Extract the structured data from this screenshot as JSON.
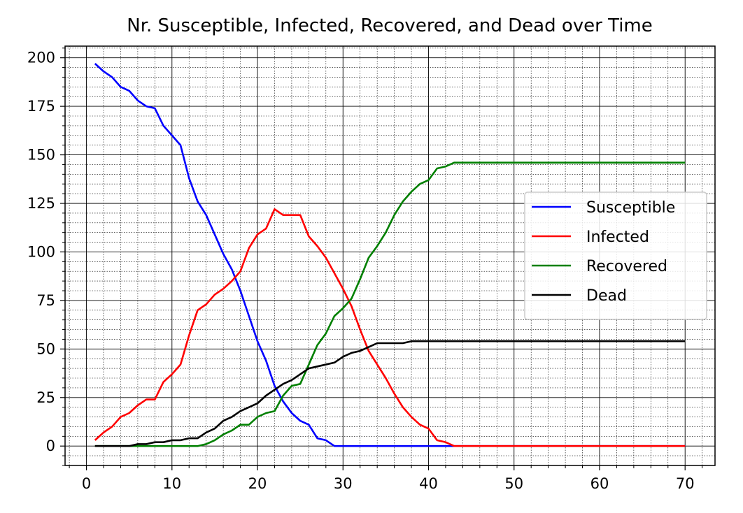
{
  "chart_data": {
    "type": "line",
    "title": "Nr. Susceptible, Infected, Recovered, and Dead over Time",
    "xlabel": "",
    "ylabel": "",
    "xlim": [
      -2.5,
      73.5
    ],
    "ylim": [
      -10,
      206
    ],
    "x_ticks": [
      0,
      10,
      20,
      30,
      40,
      50,
      60,
      70
    ],
    "x_tick_labels": [
      "0",
      "10",
      "20",
      "30",
      "40",
      "50",
      "60",
      "70"
    ],
    "y_ticks": [
      0,
      25,
      50,
      75,
      100,
      125,
      150,
      175,
      200
    ],
    "y_tick_labels": [
      "0",
      "25",
      "50",
      "75",
      "100",
      "125",
      "150",
      "175",
      "200"
    ],
    "grid": true,
    "minor_grid": true,
    "legend_position": "center-right",
    "x": [
      1,
      2,
      3,
      4,
      5,
      6,
      7,
      8,
      9,
      10,
      11,
      12,
      13,
      14,
      15,
      16,
      17,
      18,
      19,
      20,
      21,
      22,
      23,
      24,
      25,
      26,
      27,
      28,
      29,
      30,
      31,
      32,
      33,
      34,
      35,
      36,
      37,
      38,
      39,
      40,
      41,
      42,
      43,
      44,
      45,
      46,
      47,
      48,
      49,
      50,
      51,
      52,
      53,
      54,
      55,
      56,
      57,
      58,
      59,
      60,
      61,
      62,
      63,
      64,
      65,
      66,
      67,
      68,
      69,
      70
    ],
    "series": [
      {
        "name": "Susceptible",
        "color": "#0000ff",
        "values": [
          197,
          193,
          190,
          185,
          183,
          178,
          175,
          174,
          165,
          160,
          155,
          138,
          126,
          119,
          109,
          99,
          91,
          80,
          67,
          54,
          44,
          31,
          23,
          17,
          13,
          11,
          4,
          3,
          0,
          0,
          0,
          0,
          0,
          0,
          0,
          0,
          0,
          0,
          0,
          0,
          0,
          0,
          0,
          0,
          0,
          0,
          0,
          0,
          0,
          0,
          0,
          0,
          0,
          0,
          0,
          0,
          0,
          0,
          0,
          0,
          0,
          0,
          0,
          0,
          0,
          0,
          0,
          0,
          0,
          0
        ]
      },
      {
        "name": "Infected",
        "color": "#ff0000",
        "values": [
          3,
          7,
          10,
          15,
          17,
          21,
          24,
          24,
          33,
          37,
          42,
          57,
          70,
          73,
          78,
          81,
          85,
          90,
          102,
          109,
          112,
          122,
          119,
          119,
          119,
          108,
          103,
          97,
          89,
          81,
          72,
          60,
          49,
          42,
          35,
          27,
          20,
          15,
          11,
          9,
          3,
          2,
          0,
          0,
          0,
          0,
          0,
          0,
          0,
          0,
          0,
          0,
          0,
          0,
          0,
          0,
          0,
          0,
          0,
          0,
          0,
          0,
          0,
          0,
          0,
          0,
          0,
          0,
          0,
          0
        ]
      },
      {
        "name": "Recovered",
        "color": "#008000",
        "values": [
          0,
          0,
          0,
          0,
          0,
          0,
          0,
          0,
          0,
          0,
          0,
          0,
          0,
          1,
          3,
          6,
          8,
          11,
          11,
          15,
          17,
          18,
          26,
          31,
          32,
          42,
          52,
          58,
          67,
          71,
          76,
          86,
          97,
          103,
          110,
          119,
          126,
          131,
          135,
          137,
          143,
          144,
          146,
          146,
          146,
          146,
          146,
          146,
          146,
          146,
          146,
          146,
          146,
          146,
          146,
          146,
          146,
          146,
          146,
          146,
          146,
          146,
          146,
          146,
          146,
          146,
          146,
          146,
          146,
          146
        ]
      },
      {
        "name": "Dead",
        "color": "#000000",
        "values": [
          0,
          0,
          0,
          0,
          0,
          1,
          1,
          2,
          2,
          3,
          3,
          4,
          4,
          7,
          9,
          13,
          15,
          18,
          20,
          22,
          26,
          29,
          32,
          34,
          37,
          40,
          41,
          42,
          43,
          46,
          48,
          49,
          51,
          53,
          53,
          53,
          53,
          54,
          54,
          54,
          54,
          54,
          54,
          54,
          54,
          54,
          54,
          54,
          54,
          54,
          54,
          54,
          54,
          54,
          54,
          54,
          54,
          54,
          54,
          54,
          54,
          54,
          54,
          54,
          54,
          54,
          54,
          54,
          54,
          54
        ]
      }
    ]
  }
}
